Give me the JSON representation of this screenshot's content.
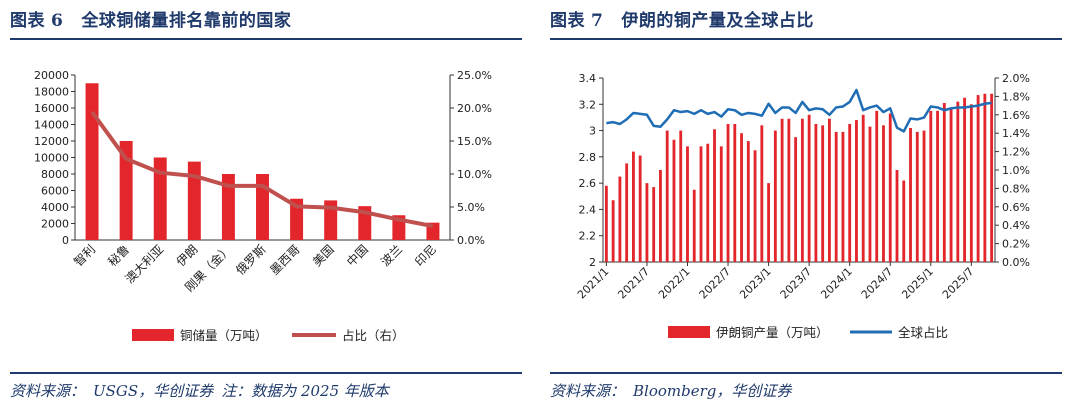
{
  "left": {
    "fig_label": "图表",
    "fig_num": "6",
    "title": "全球铜储量排名靠前的国家",
    "source_prefix": "资料来源：",
    "source_body": "USGS，华创证券",
    "source_note": "注：数据为 2025 年版本",
    "colors": {
      "bar": "#e3262b",
      "line": "#c0504d"
    }
  },
  "right": {
    "fig_label": "图表",
    "fig_num": "7",
    "title": "伊朗的铜产量及全球占比",
    "source_prefix": "资料来源：",
    "source_body": "Bloomberg，华创证券",
    "colors": {
      "bar": "#e3262b",
      "line": "#1f6db5"
    }
  },
  "chart_data": [
    {
      "type": "bar",
      "title": "全球铜储量排名靠前的国家",
      "categories": [
        "智利",
        "秘鲁",
        "澳大利亚",
        "伊朗",
        "刚果（金）",
        "俄罗斯",
        "墨西哥",
        "美国",
        "中国",
        "波兰",
        "印尼"
      ],
      "series": [
        {
          "name": "铜储量（万吨）",
          "type": "bar",
          "axis": "left",
          "values": [
            19000,
            12000,
            10000,
            9500,
            8000,
            8000,
            5000,
            4800,
            4100,
            3000,
            2100
          ]
        },
        {
          "name": "占比（右）",
          "type": "line",
          "axis": "right",
          "values": [
            0.194,
            0.123,
            0.102,
            0.097,
            0.082,
            0.082,
            0.051,
            0.049,
            0.042,
            0.031,
            0.021
          ]
        }
      ],
      "ylim": [
        0,
        20000
      ],
      "yticks": [
        "0",
        "2000",
        "4000",
        "6000",
        "8000",
        "10000",
        "12000",
        "14000",
        "16000",
        "18000",
        "20000"
      ],
      "y2lim": [
        0,
        0.25
      ],
      "y2ticks": [
        "0.0%",
        "5.0%",
        "10.0%",
        "15.0%",
        "20.0%",
        "25.0%"
      ],
      "legend": [
        "铜储量（万吨）",
        "占比（右）"
      ],
      "legend_position": "bottom"
    },
    {
      "type": "bar",
      "title": "伊朗的铜产量及全球占比",
      "x_ticks": [
        "2021/1",
        "2021/7",
        "2022/1",
        "2022/7",
        "2023/1",
        "2023/7",
        "2024/1",
        "2024/7",
        "2025/1",
        "2025/7"
      ],
      "series": [
        {
          "name": "伊朗铜产量（万吨）",
          "type": "bar",
          "axis": "left",
          "values": [
            2.58,
            2.47,
            2.65,
            2.75,
            2.84,
            2.81,
            2.6,
            2.57,
            2.7,
            3.0,
            2.93,
            3.0,
            2.88,
            2.55,
            2.88,
            2.9,
            3.01,
            2.88,
            3.05,
            3.05,
            2.98,
            2.92,
            2.85,
            3.04,
            2.6,
            3.0,
            3.09,
            3.09,
            2.95,
            3.09,
            3.12,
            3.05,
            3.04,
            3.09,
            2.99,
            2.99,
            3.05,
            3.08,
            3.12,
            3.03,
            3.15,
            3.04,
            3.13,
            2.7,
            2.62,
            3.02,
            2.99,
            3.0,
            3.15,
            3.15,
            3.21,
            3.17,
            3.22,
            3.25,
            3.2,
            3.27,
            3.28,
            3.28
          ]
        },
        {
          "name": "全球占比",
          "type": "line",
          "axis": "right",
          "values": [
            0.0151,
            0.0152,
            0.015,
            0.0155,
            0.0162,
            0.0161,
            0.016,
            0.0148,
            0.0147,
            0.0155,
            0.0165,
            0.0163,
            0.0164,
            0.0161,
            0.0165,
            0.0161,
            0.0163,
            0.0158,
            0.0166,
            0.0165,
            0.016,
            0.0162,
            0.0161,
            0.0159,
            0.0172,
            0.0162,
            0.0168,
            0.0168,
            0.0162,
            0.0174,
            0.0165,
            0.0167,
            0.0166,
            0.016,
            0.0168,
            0.0169,
            0.0174,
            0.0187,
            0.0165,
            0.0168,
            0.017,
            0.0163,
            0.0167,
            0.0146,
            0.0142,
            0.0156,
            0.0155,
            0.0157,
            0.0169,
            0.0168,
            0.0165,
            0.0167,
            0.0168,
            0.0168,
            0.0169,
            0.017,
            0.0172,
            0.0173
          ]
        }
      ],
      "ylim": [
        2,
        3.4
      ],
      "yticks": [
        "2",
        "2.2",
        "2.4",
        "2.6",
        "2.8",
        "3",
        "3.2",
        "3.4"
      ],
      "y2lim": [
        0,
        0.02
      ],
      "y2ticks": [
        "0.0%",
        "0.2%",
        "0.4%",
        "0.6%",
        "0.8%",
        "1.0%",
        "1.2%",
        "1.4%",
        "1.6%",
        "1.8%",
        "2.0%"
      ],
      "legend": [
        "伊朗铜产量（万吨）",
        "全球占比"
      ],
      "legend_position": "bottom"
    }
  ]
}
